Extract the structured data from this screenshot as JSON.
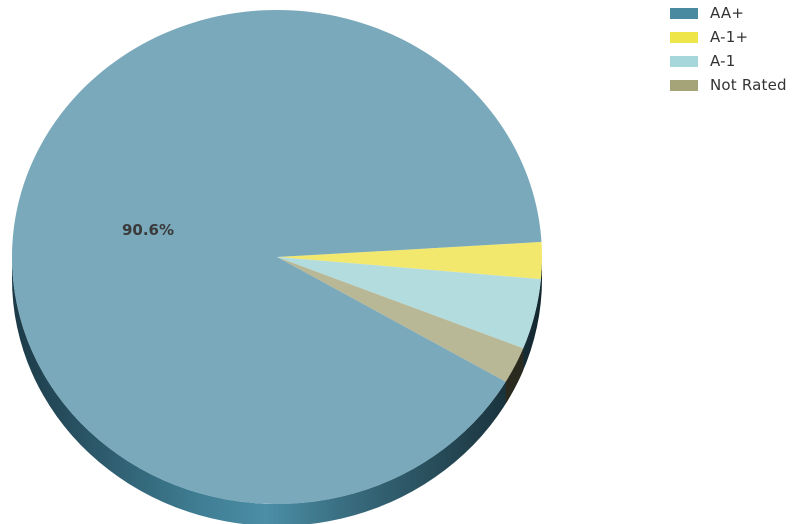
{
  "chart_data": {
    "type": "pie",
    "style": "3d",
    "slices": [
      {
        "label": "AA+",
        "value": 90.6,
        "color": "#79a9bb",
        "legend_color": "#4a8aa1"
      },
      {
        "label": "A-1+",
        "value": 2.4,
        "color": "#f2e86e",
        "legend_color": "#eee549"
      },
      {
        "label": "A-1",
        "value": 4.6,
        "color": "#b3dcdf",
        "legend_color": "#a6d7da"
      },
      {
        "label": "Not Rated",
        "value": 2.4,
        "color": "#b8b897",
        "legend_color": "#a4a478"
      }
    ],
    "data_labels": [
      {
        "slice": "AA+",
        "text": "90.6%"
      }
    ],
    "legend_position": "top-right"
  }
}
